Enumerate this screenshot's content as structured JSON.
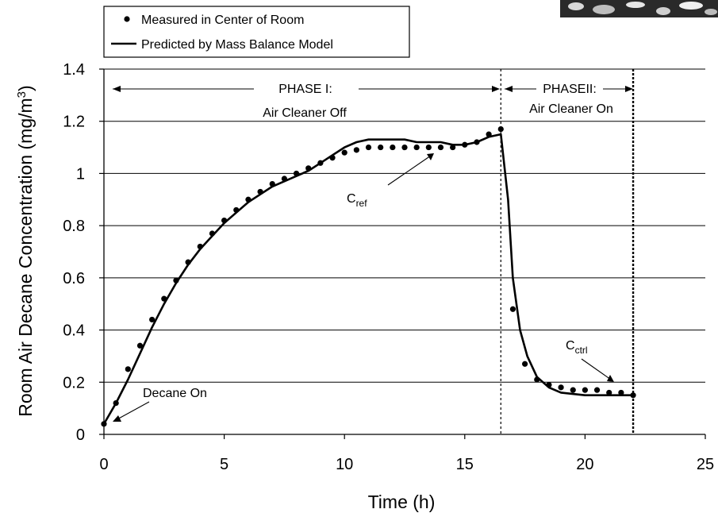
{
  "chart_data": {
    "type": "scatter",
    "xlabel": "Time (h)",
    "ylabel": "Room Air Decane Concentration (mg/m",
    "ylabel_sup": "3",
    "ylabel_close": ")",
    "xlim": [
      0,
      25
    ],
    "ylim": [
      0,
      1.4
    ],
    "xticks": [
      0,
      5,
      10,
      15,
      20,
      25
    ],
    "yticks": [
      0,
      0.2,
      0.4,
      0.6,
      0.8,
      1,
      1.2,
      1.4
    ],
    "xtick_labels": [
      "0",
      "5",
      "10",
      "15",
      "20",
      "25"
    ],
    "ytick_labels": [
      "0",
      "0.2",
      "0.4",
      "0.6",
      "0.8",
      "1",
      "1.2",
      "1.4"
    ],
    "grid": "horizontal",
    "legend_position": "top-left",
    "series": [
      {
        "name": "Measured in Center of Room",
        "kind": "points",
        "color": "#000000",
        "x": [
          0,
          0.5,
          1,
          1.5,
          2,
          2.5,
          3,
          3.5,
          4,
          4.5,
          5,
          5.5,
          6,
          6.5,
          7,
          7.5,
          8,
          8.5,
          9,
          9.5,
          10,
          10.5,
          11,
          11.5,
          12,
          12.5,
          13,
          13.5,
          14,
          14.5,
          15,
          15.5,
          16,
          16.5,
          17,
          17.5,
          18,
          18.5,
          19,
          19.5,
          20,
          20.5,
          21,
          21.5,
          22
        ],
        "y": [
          0.04,
          0.12,
          0.25,
          0.34,
          0.44,
          0.52,
          0.59,
          0.66,
          0.72,
          0.77,
          0.82,
          0.86,
          0.9,
          0.93,
          0.96,
          0.98,
          1.0,
          1.02,
          1.04,
          1.06,
          1.08,
          1.09,
          1.1,
          1.1,
          1.1,
          1.1,
          1.1,
          1.1,
          1.1,
          1.1,
          1.11,
          1.12,
          1.15,
          1.17,
          0.48,
          0.27,
          0.21,
          0.19,
          0.18,
          0.17,
          0.17,
          0.17,
          0.16,
          0.16,
          0.15
        ]
      },
      {
        "name": "Predicted by Mass Balance Model",
        "kind": "line",
        "color": "#000000",
        "x": [
          0,
          0.5,
          1,
          1.5,
          2,
          2.5,
          3,
          3.5,
          4,
          4.5,
          5,
          5.5,
          6,
          6.5,
          7,
          7.5,
          8,
          8.5,
          9,
          9.5,
          10,
          10.5,
          11,
          11.5,
          12,
          12.5,
          13,
          13.5,
          14,
          14.5,
          15,
          15.5,
          16,
          16.5,
          16.8,
          17,
          17.3,
          17.6,
          18,
          18.5,
          19,
          19.5,
          20,
          20.5,
          21,
          21.5,
          22
        ],
        "y": [
          0.04,
          0.12,
          0.21,
          0.31,
          0.41,
          0.5,
          0.58,
          0.65,
          0.71,
          0.76,
          0.81,
          0.85,
          0.89,
          0.92,
          0.95,
          0.97,
          0.99,
          1.01,
          1.04,
          1.07,
          1.1,
          1.12,
          1.13,
          1.13,
          1.13,
          1.13,
          1.12,
          1.12,
          1.12,
          1.11,
          1.11,
          1.12,
          1.14,
          1.15,
          0.9,
          0.6,
          0.4,
          0.3,
          0.22,
          0.18,
          0.16,
          0.155,
          0.15,
          0.15,
          0.15,
          0.15,
          0.15
        ]
      }
    ],
    "phase_lines": [
      16.5,
      22
    ],
    "annotations": {
      "phase1_label": "PHASE I:",
      "phase1_sub": "Air Cleaner Off",
      "phase2_label": "PHASEII:",
      "phase2_sub": "Air Cleaner On",
      "decane_on": "Decane On",
      "cref_main": "C",
      "cref_sub": "ref",
      "cctrl_main": "C",
      "cctrl_sub": "ctrl"
    }
  }
}
